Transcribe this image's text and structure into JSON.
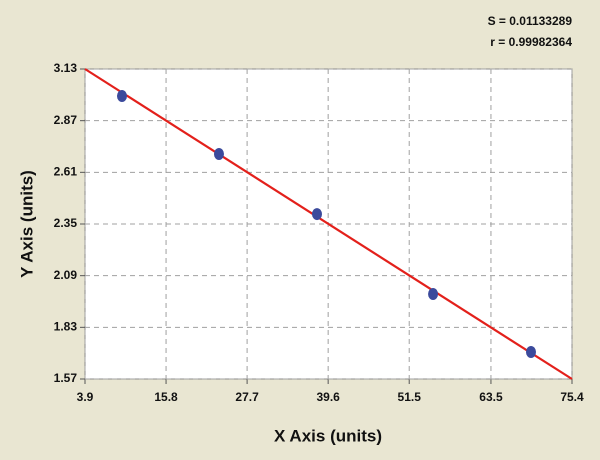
{
  "chart_data": {
    "type": "scatter",
    "annotations": [
      "S = 0.01133289",
      "r = 0.99982364"
    ],
    "x_label": "X Axis (units)",
    "y_label": "Y Axis (units)",
    "xlim": [
      3.9,
      75.4
    ],
    "xticks": [
      3.9,
      15.8,
      27.7,
      39.6,
      51.5,
      63.5,
      75.4
    ],
    "ylim": [
      1.57,
      3.13
    ],
    "yticks": [
      1.57,
      1.83,
      2.09,
      2.35,
      2.61,
      2.87,
      3.13
    ],
    "grid": true,
    "series": [
      {
        "type": "scatter",
        "color": "#3b4a9c",
        "x": [
          9.33,
          23.57,
          37.96,
          55.0,
          69.38
        ],
        "values": [
          2.994,
          2.702,
          2.4,
          1.998,
          1.706
        ]
      },
      {
        "type": "line",
        "color": "#e3201b",
        "x": [
          3.9,
          75.4
        ],
        "values": [
          3.13,
          1.57
        ]
      }
    ]
  }
}
